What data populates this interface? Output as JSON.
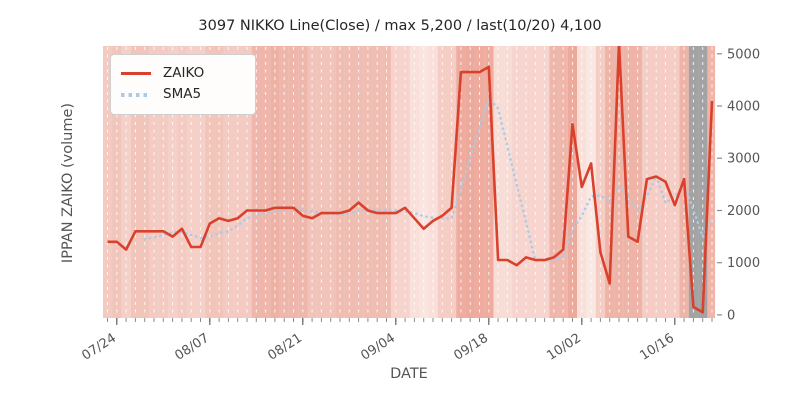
{
  "title": "3097 NIKKO Line(Close) / max 5,200 / last(10/20) 4,100",
  "legend": {
    "position": "upper-left",
    "items": [
      {
        "label": "ZAIKO",
        "color": "#d9412c",
        "style": "solid"
      },
      {
        "label": "SMA5",
        "color": "#a9cbe8",
        "style": "dotted"
      }
    ]
  },
  "axes": {
    "ylabel": "IPPAN ZAIKO (volume)",
    "xlabel": "DATE",
    "y_tick_side": "right",
    "y_ticks": [
      0,
      1000,
      2000,
      3000,
      4000,
      5000
    ],
    "ylim": [
      -60,
      5150
    ],
    "x_tick_labels": [
      "07/24",
      "08/07",
      "08/21",
      "09/04",
      "09/18",
      "10/02",
      "10/16"
    ],
    "x_tick_positions": [
      1,
      11,
      21,
      31,
      41,
      51,
      61
    ]
  },
  "colors": {
    "figure_bg": "#ffffff",
    "plot_bg": "#e8e8e8",
    "grid": "#ffffff",
    "tick_text": "#555555",
    "tick_mark": "#8a8a8a",
    "band_gray": "#a3a3a3"
  },
  "chart_data": {
    "type": "line",
    "x_unit": "trading-day-index",
    "n_points": 66,
    "title": "3097 NIKKO Line(Close) / max 5,200 / last(10/20) 4,100",
    "xlabel": "DATE",
    "ylabel": "IPPAN ZAIKO (volume)",
    "ylim": [
      -60,
      5150
    ],
    "grid": "vertical-dashed-white-per-day",
    "legend_position": "upper-left",
    "max_value": 5200,
    "last_label": "last(10/20)",
    "last_value": 4100,
    "series": [
      {
        "name": "ZAIKO",
        "color": "#d9412c",
        "style": "solid",
        "values": [
          1400,
          1400,
          1250,
          1600,
          1600,
          1600,
          1600,
          1500,
          1650,
          1300,
          1300,
          1750,
          1850,
          1800,
          1850,
          2000,
          2000,
          2000,
          2050,
          2050,
          2050,
          1900,
          1850,
          1950,
          1950,
          1950,
          2000,
          2150,
          2000,
          1950,
          1950,
          1950,
          2050,
          1850,
          1650,
          1800,
          1900,
          2050,
          4650,
          4650,
          4650,
          4750,
          1050,
          1050,
          950,
          1100,
          1050,
          1050,
          1100,
          1250,
          3650,
          2450,
          2900,
          1200,
          600,
          5200,
          1500,
          1400,
          2600,
          2650,
          2550,
          2100,
          2600,
          150,
          50,
          4100
        ]
      },
      {
        "name": "SMA5",
        "color": "#a9cbe8",
        "style": "dotted",
        "values": [
          null,
          null,
          null,
          null,
          1450,
          1490,
          1530,
          1580,
          1590,
          1530,
          1470,
          1500,
          1570,
          1600,
          1710,
          1850,
          1900,
          1930,
          1980,
          2020,
          2030,
          2010,
          1980,
          1960,
          1940,
          1920,
          1940,
          2000,
          2010,
          2010,
          2010,
          2000,
          1980,
          1950,
          1890,
          1860,
          1850,
          1850,
          2410,
          3010,
          3580,
          4150,
          3950,
          3230,
          2490,
          1780,
          1040,
          1040,
          1050,
          1110,
          1620,
          1900,
          2270,
          2290,
          2160,
          2470,
          2280,
          1980,
          2260,
          2670,
          2140,
          2260,
          2500,
          2010,
          1490,
          1800
        ]
      }
    ],
    "day_band_colors": [
      "#f4cbc2",
      "#f2c5bb",
      "#f5d0c8",
      "#f2c5bb",
      "#f2c5bb",
      "#f4cbc2",
      "#f4cbc2",
      "#f5d0c8",
      "#f4cbc2",
      "#f5d0c8",
      "#f5d0c8",
      "#f2c5bb",
      "#f2c5bb",
      "#f4cbc2",
      "#f4cbc2",
      "#f4cbc2",
      "#efb7ab",
      "#efb7ab",
      "#eeb2a5",
      "#efb7ab",
      "#efb7ab",
      "#efb7ab",
      "#f2c3b9",
      "#f2c3b9",
      "#f2c3b9",
      "#f0bdb2",
      "#f0bdb2",
      "#f0bdb2",
      "#f0bdb2",
      "#f0bdb2",
      "#f0bdb2",
      "#f6d3cc",
      "#f6d3cc",
      "#f9e0da",
      "#fae5e0",
      "#f9e0da",
      "#f5cdc5",
      "#f5cdc5",
      "#eeab9e",
      "#ecaa9c",
      "#eeab9e",
      "#eeab9e",
      "#f8ddd7",
      "#f8ddd7",
      "#f7d5ce",
      "#f7d5ce",
      "#f7d5ce",
      "#f7d5ce",
      "#efb7ab",
      "#efb7ab",
      "#eca99c",
      "#f9e0da",
      "#fae8e4",
      "#f5cdc5",
      "#efb4a8",
      "#efb4a8",
      "#efb4a8",
      "#efb4a8",
      "#f5cdc5",
      "#f5cdc5",
      "#f5cdc5",
      "#f5cdc5",
      "#efb4a8",
      "#a3a3a3",
      "#a3a3a3",
      "#f0b4a8"
    ]
  }
}
